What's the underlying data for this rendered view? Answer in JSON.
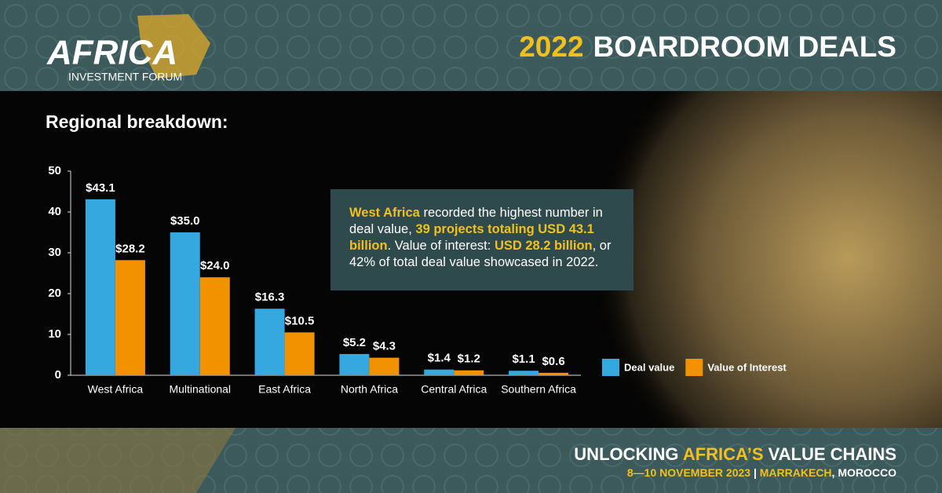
{
  "branding": {
    "logo": "AFRICA",
    "logo_sub": "INVESTMENT FORUM"
  },
  "headline": {
    "year": "2022",
    "text": "BOARDROOM DEALS"
  },
  "chart_data": {
    "type": "bar",
    "title": "Regional breakdown:",
    "categories": [
      "West Africa",
      "Multinational",
      "East Africa",
      "North Africa",
      "Central Africa",
      "Southern Africa"
    ],
    "series": [
      {
        "name": "Deal value",
        "color": "#35a8e0",
        "values": [
          43.1,
          35,
          16.3,
          5.2,
          1.4,
          1.1
        ],
        "value_labels": [
          "$43.1",
          "$35.0",
          "$16.3",
          "$5.2",
          "$1.4",
          "$1.1"
        ]
      },
      {
        "name": "Value of Interest",
        "color": "#f39200",
        "values": [
          28.2,
          24,
          10.5,
          4.3,
          1.2,
          0.6
        ],
        "value_labels": [
          "$28.2",
          "$24.0",
          "$10.5",
          "$4.3",
          "$1.2",
          "$0.6"
        ]
      }
    ],
    "ylim": [
      0,
      50
    ],
    "yticks": [
      0,
      10,
      20,
      30,
      40,
      50
    ],
    "grid": false,
    "legend": "right"
  },
  "callout": [
    {
      "text": "West Africa",
      "highlight": true
    },
    {
      "text": " recorded the highest number in deal value, ",
      "highlight": false
    },
    {
      "text": "39 projects totaling USD 43.1 billion",
      "highlight": true
    },
    {
      "text": ". Value of interest: ",
      "highlight": false
    },
    {
      "text": "USD 28.2 billion",
      "highlight": true
    },
    {
      "text": ", or 42% of total deal value showcased in 2022.",
      "highlight": false
    }
  ],
  "footer": {
    "line1": [
      {
        "text": "UNLOCKING ",
        "highlight": false
      },
      {
        "text": "AFRICA’S",
        "highlight": true
      },
      {
        "text": " VALUE CHAINS",
        "highlight": false
      }
    ],
    "line2": [
      {
        "text": "8—10 NOVEMBER 2023",
        "highlight": true
      },
      {
        "text": " | ",
        "highlight": false
      },
      {
        "text": "MARRAKECH",
        "highlight": true
      },
      {
        "text": ", MOROCCO",
        "highlight": false
      }
    ]
  }
}
